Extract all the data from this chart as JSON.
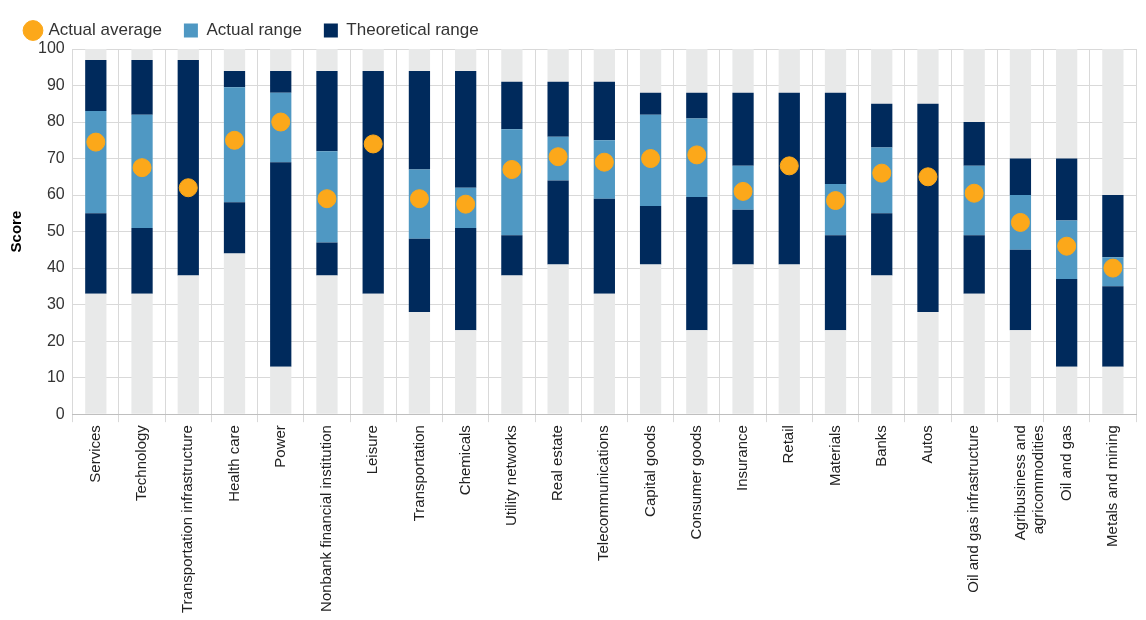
{
  "chart_data": {
    "type": "bar",
    "ylabel": "Score",
    "stacked": true,
    "categories": [
      "Services",
      "Technology",
      "Transportation infrastructure",
      "Health care",
      "Power",
      "Nonbank financial institution",
      "Leisure",
      "Transportation",
      "Chemicals",
      "Utility networks",
      "Real estate",
      "Telecommunications",
      "Capital goods",
      "Consumer goods",
      "Insurance",
      "Retail",
      "Materials",
      "Banks",
      "Autos",
      "Oil and gas infrastructure",
      "Agribusiness and\nagricommodities",
      "Oil and gas",
      "Metals and mining"
    ],
    "series": [
      {
        "color": "#e8e9e9",
        "values": [
          33,
          33,
          38,
          44,
          13,
          38,
          33,
          28,
          23,
          38,
          41,
          33,
          41,
          23,
          41,
          41,
          23,
          38,
          28,
          33,
          23,
          13,
          13
        ]
      },
      {
        "color": "#002a5c",
        "values": [
          22,
          18,
          59,
          14,
          56,
          9,
          61,
          20,
          28,
          11,
          23,
          26,
          16,
          36.5,
          15,
          47,
          26,
          17,
          57,
          16,
          22,
          24,
          22
        ]
      },
      {
        "name": "Actual range",
        "color": "#4f98c3",
        "values": [
          28,
          31,
          null,
          31.5,
          19,
          25,
          null,
          19,
          11,
          29,
          12,
          16,
          25,
          21.5,
          12,
          null,
          14,
          18,
          null,
          19,
          15,
          16,
          8
        ]
      },
      {
        "name": "Theoretical range",
        "color": "#002a5c",
        "values": [
          14,
          15,
          null,
          4.5,
          6,
          22,
          null,
          27,
          32,
          13,
          15,
          16,
          6,
          7,
          20,
          null,
          25,
          12,
          null,
          12,
          10,
          17,
          17
        ]
      },
      {
        "color": "#e8e9e9",
        "values": [
          3,
          3,
          3,
          6,
          6,
          6,
          6,
          6,
          6,
          9,
          9,
          9,
          12,
          12,
          12,
          12,
          12,
          15,
          15,
          20,
          30,
          30,
          40
        ]
      },
      {
        "name": "Actual average",
        "type": "scatter",
        "color": "#fca81a",
        "x": [
          "Services",
          "Technology",
          "Transportation infrastructure",
          "Health care",
          "Power",
          "Nonbank financial institution",
          "Leisure",
          "Transportation",
          "Chemicals",
          "Utility networks",
          "Real estate",
          "Telecommunications",
          "Capital goods",
          "Consumer goods",
          "Insurance",
          "Retail",
          "Materials",
          "Banks",
          "Autos",
          "Oil and gas infrastructure",
          "Agribusiness and\nagricommodities",
          "Oil and gas",
          "Metals and mining"
        ],
        "values": [
          74.5,
          67.5,
          62,
          75,
          80,
          59,
          74,
          59,
          57.5,
          67,
          70.5,
          69,
          70,
          71,
          61,
          68,
          58.5,
          66,
          65,
          60.5,
          52.5,
          46,
          40
        ]
      }
    ],
    "ylim": [
      0,
      100
    ],
    "yticks": [
      0,
      10,
      20,
      30,
      40,
      50,
      60,
      70,
      80,
      90,
      100
    ],
    "grid": true,
    "legend": "top left",
    "marker": "circle"
  }
}
